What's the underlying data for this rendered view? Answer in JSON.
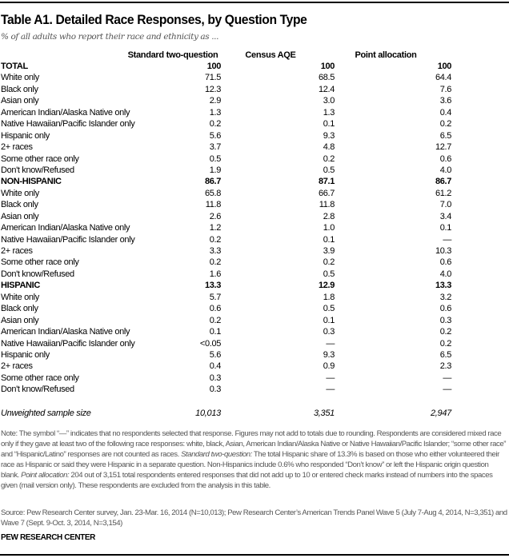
{
  "title": "Table A1. Detailed Race Responses,  by Question Type",
  "subtitle": "% of all adults who report their race and ethnicity as ...",
  "columns": [
    "Standard two-question",
    "Census AQE",
    "Point allocation"
  ],
  "rows": [
    {
      "label": "TOTAL",
      "bold": true,
      "values": [
        "100",
        "100",
        "100"
      ]
    },
    {
      "label": "White only",
      "values": [
        "71.5",
        "68.5",
        "64.4"
      ]
    },
    {
      "label": "Black only",
      "values": [
        "12.3",
        "12.4",
        "7.6"
      ]
    },
    {
      "label": "Asian only",
      "values": [
        "2.9",
        "3.0",
        "3.6"
      ]
    },
    {
      "label": "American Indian/Alaska Native only",
      "values": [
        "1.3",
        "1.3",
        "0.4"
      ]
    },
    {
      "label": "Native Hawaiian/Pacific Islander only",
      "values": [
        "0.2",
        "0.1",
        "0.2"
      ]
    },
    {
      "label": "Hispanic only",
      "values": [
        "5.6",
        "9.3",
        "6.5"
      ]
    },
    {
      "label": "2+ races",
      "values": [
        "3.7",
        "4.8",
        "12.7"
      ]
    },
    {
      "label": "Some other race only",
      "values": [
        "0.5",
        "0.2",
        "0.6"
      ]
    },
    {
      "label": "Don't know/Refused",
      "values": [
        "1.9",
        "0.5",
        "4.0"
      ]
    },
    {
      "label": "NON-HISPANIC",
      "bold": true,
      "values": [
        "86.7",
        "87.1",
        "86.7"
      ]
    },
    {
      "label": "White only",
      "values": [
        "65.8",
        "66.7",
        "61.2"
      ]
    },
    {
      "label": "Black only",
      "values": [
        "11.8",
        "11.8",
        "7.0"
      ]
    },
    {
      "label": "Asian only",
      "values": [
        "2.6",
        "2.8",
        "3.4"
      ]
    },
    {
      "label": "American Indian/Alaska Native only",
      "values": [
        "1.2",
        "1.0",
        "0.1"
      ]
    },
    {
      "label": "Native Hawaiian/Pacific Islander only",
      "values": [
        "0.2",
        "0.1",
        "—"
      ]
    },
    {
      "label": "2+ races",
      "values": [
        "3.3",
        "3.9",
        "10.3"
      ]
    },
    {
      "label": "Some other race only",
      "values": [
        "0.2",
        "0.2",
        "0.6"
      ]
    },
    {
      "label": "Don't know/Refused",
      "values": [
        "1.6",
        "0.5",
        "4.0"
      ]
    },
    {
      "label": "HISPANIC",
      "bold": true,
      "values": [
        "13.3",
        "12.9",
        "13.3"
      ]
    },
    {
      "label": "White only",
      "values": [
        "5.7",
        "1.8",
        "3.2"
      ]
    },
    {
      "label": "Black only",
      "values": [
        "0.6",
        "0.5",
        "0.6"
      ]
    },
    {
      "label": "Asian only",
      "values": [
        "0.2",
        "0.1",
        "0.3"
      ]
    },
    {
      "label": "American Indian/Alaska Native only",
      "values": [
        "0.1",
        "0.3",
        "0.2"
      ]
    },
    {
      "label": "Native Hawaiian/Pacific Islander only",
      "values": [
        "<0.05",
        "—",
        "0.2"
      ]
    },
    {
      "label": "Hispanic only",
      "values": [
        "5.6",
        "9.3",
        "6.5"
      ]
    },
    {
      "label": "2+ races",
      "values": [
        "0.4",
        "0.9",
        "2.3"
      ]
    },
    {
      "label": "Some other race only",
      "values": [
        "0.3",
        "—",
        "—"
      ]
    },
    {
      "label": "Don't know/Refused",
      "values": [
        "0.3",
        "—",
        "—"
      ]
    }
  ],
  "sample": {
    "label": "Unweighted sample size",
    "values": [
      "10,013",
      "3,351",
      "2,947"
    ]
  },
  "note": {
    "p1": "Note: The symbol “—” indicates that no respondents selected that response. Figures may not add to totals due to rounding. Respondents are considered mixed race only if they gave at least two of the following race responses: white, black, Asian, American Indian/Alaska Native or Native Hawaiian/Pacific Islander; “some other race” and “Hispanic/Latino” responses are not counted as races. ",
    "i1": "Standard two-question:",
    "p2": " The total Hispanic share of 13.3% is based on those who either volunteered their race as Hispanic or said they were Hispanic in a separate question. Non-Hispanics include 0.6% who responded “Don’t know” or left the Hispanic origin question blank. ",
    "i2": "Point allocation:",
    "p3": " 204 out of 3,151 total respondents entered responses that did not add up to 10 or entered check marks instead of numbers into the spaces given (mail version only). These respondents are excluded from the analysis in this table."
  },
  "source": "Source: Pew Research Center survey, Jan. 23-Mar. 16, 2014 (N=10,013);  Pew Research Center’s American Trends Panel Wave 5 (July 7-Aug 4, 2014, N=3,351) and Wave 7 (Sept. 9-Oct. 3, 2014, N=3,154)",
  "org": "PEW RESEARCH CENTER"
}
